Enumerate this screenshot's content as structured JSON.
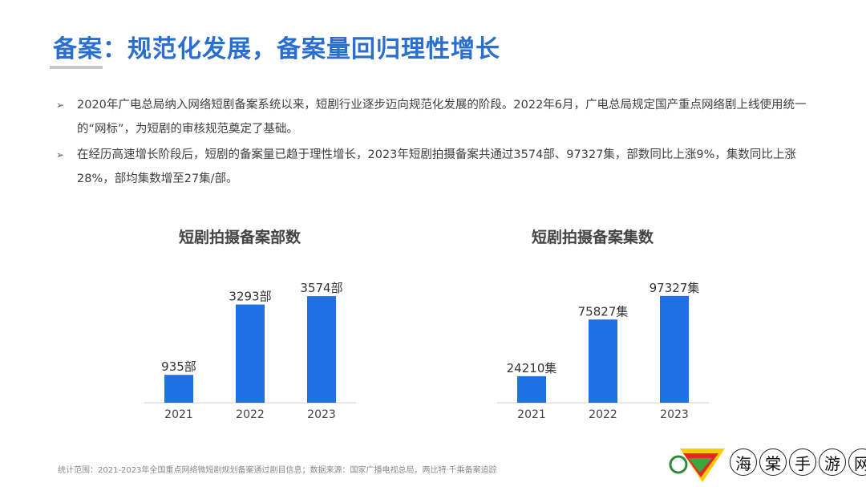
{
  "header": {
    "title": "备案：规范化发展，备案量回归理性增长"
  },
  "bullets": [
    {
      "marker": "➢",
      "text": "2020年广电总局纳入网络短剧备案系统以来，短剧行业逐步迈向规范化发展的阶段。2022年6月，广电总局规定国产重点网络剧上线使用统一的“网标”，为短剧的审核规范奠定了基础。"
    },
    {
      "marker": "➢",
      "text": "在经历高速增长阶段后，短剧的备案量已趋于理性增长，2023年短剧拍摄备案共通过3574部、97327集，部数同比上涨9%，集数同比上涨28%，部均集数增至27集/部。"
    }
  ],
  "chart_data": [
    {
      "type": "bar",
      "title": "短剧拍摄备案部数",
      "categories": [
        "2021",
        "2022",
        "2023"
      ],
      "values": [
        935,
        3293,
        3574
      ],
      "labels": [
        "935部",
        "3293部",
        "3574部"
      ],
      "ylim": [
        0,
        3900
      ],
      "color": "#1f6fe5"
    },
    {
      "type": "bar",
      "title": "短剧拍摄备案集数",
      "categories": [
        "2021",
        "2022",
        "2023"
      ],
      "values": [
        24210,
        75827,
        97327
      ],
      "labels": [
        "24210集",
        "75827集",
        "97327集"
      ],
      "ylim": [
        0,
        106000
      ],
      "color": "#1f6fe5"
    }
  ],
  "footnote": "统计范围：2021-2023年全国重点网络微短剧规划备案通过剧目信息；数据来源：国家广播电视总局，两比特·千乘备案追踪",
  "watermark": {
    "chars": [
      "海",
      "棠",
      "手",
      "游",
      "网"
    ]
  }
}
